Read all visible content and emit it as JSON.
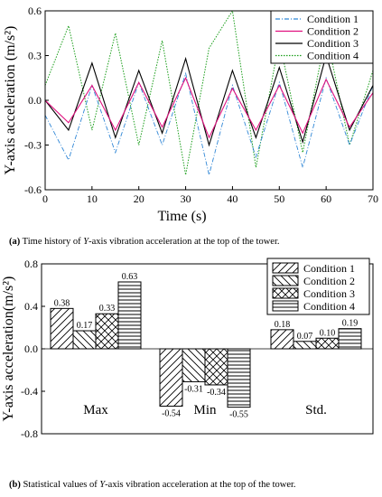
{
  "captions": {
    "a": {
      "tag": "(a)",
      "pre": " Time history of ",
      "var": "Y",
      "post": "-axis vibration acceleration at the top of the tower."
    },
    "b": {
      "tag": "(b)",
      "pre": " Statistical values of ",
      "var": "Y",
      "post": "-axis vibration acceleration at the top of the tower."
    }
  },
  "chart_data": [
    {
      "type": "line",
      "xlabel": "Time (s)",
      "ylabel": "Y-axis acceleration (m/s²)",
      "xlim": [
        0,
        70
      ],
      "ylim": [
        -0.6,
        0.6
      ],
      "x_ticks": [
        "0",
        "10",
        "20",
        "30",
        "40",
        "50",
        "60",
        "70"
      ],
      "y_ticks": [
        "-0.6",
        "-0.3",
        "0.0",
        "0.3",
        "0.6"
      ],
      "legend": {
        "position": "top-right"
      },
      "series": [
        {
          "name": "Condition 1",
          "color": "#2f86d6",
          "style": "dash-dot",
          "x": [
            0,
            5,
            10,
            15,
            20,
            25,
            30,
            35,
            40,
            45,
            50,
            55,
            60,
            65,
            70
          ],
          "y": [
            -0.1,
            -0.4,
            0.1,
            -0.35,
            0.12,
            -0.3,
            0.18,
            -0.5,
            0.1,
            -0.38,
            0.12,
            -0.45,
            0.15,
            -0.3,
            0.1
          ],
          "max": 0.38,
          "min": -0.54,
          "std": 0.18
        },
        {
          "name": "Condition 2",
          "color": "#e0117f",
          "style": "solid",
          "x": [
            0,
            5,
            10,
            15,
            20,
            25,
            30,
            35,
            40,
            45,
            50,
            55,
            60,
            65,
            70
          ],
          "y": [
            0.0,
            -0.15,
            0.1,
            -0.2,
            0.12,
            -0.18,
            0.15,
            -0.25,
            0.08,
            -0.2,
            0.1,
            -0.22,
            0.14,
            -0.18,
            0.05
          ],
          "max": 0.17,
          "min": -0.31,
          "std": 0.07
        },
        {
          "name": "Condition 3",
          "color": "#000000",
          "style": "solid",
          "x": [
            0,
            5,
            10,
            15,
            20,
            25,
            30,
            35,
            40,
            45,
            50,
            55,
            60,
            65,
            70
          ],
          "y": [
            0.0,
            -0.2,
            0.25,
            -0.25,
            0.2,
            -0.22,
            0.28,
            -0.3,
            0.2,
            -0.25,
            0.22,
            -0.28,
            0.3,
            -0.2,
            0.1
          ],
          "max": 0.33,
          "min": -0.34,
          "std": 0.1
        },
        {
          "name": "Condition 4",
          "color": "#1a9e1a",
          "style": "dotted",
          "x": [
            0,
            5,
            10,
            15,
            20,
            25,
            30,
            35,
            40,
            45,
            50,
            55,
            60,
            65,
            70
          ],
          "y": [
            0.1,
            0.5,
            -0.2,
            0.45,
            -0.3,
            0.4,
            -0.5,
            0.35,
            0.6,
            -0.45,
            0.4,
            -0.35,
            0.45,
            -0.3,
            0.2
          ],
          "max": 0.63,
          "min": -0.55,
          "std": 0.19
        }
      ]
    },
    {
      "type": "bar",
      "ylabel": "Y-axis acceleration(m/s²)",
      "ylim": [
        -0.8,
        0.8
      ],
      "y_ticks": [
        "-0.8",
        "-0.4",
        "0.0",
        "0.4",
        "0.8"
      ],
      "categories": [
        "Max",
        "Min",
        "Std."
      ],
      "legend": {
        "position": "top-right"
      },
      "series": [
        {
          "name": "Condition 1",
          "pattern": "diag-up",
          "values": [
            0.38,
            -0.54,
            0.18
          ],
          "labels": [
            "0.38",
            "-0.54",
            "0.18"
          ]
        },
        {
          "name": "Condition 2",
          "pattern": "diag-down",
          "values": [
            0.17,
            -0.31,
            0.07
          ],
          "labels": [
            "0.17",
            "-0.31",
            "0.07"
          ]
        },
        {
          "name": "Condition 3",
          "pattern": "cross",
          "values": [
            0.33,
            -0.34,
            0.1
          ],
          "labels": [
            "0.33",
            "-0.34",
            "0.10"
          ]
        },
        {
          "name": "Condition 4",
          "pattern": "horizontal",
          "values": [
            0.63,
            -0.55,
            0.19
          ],
          "labels": [
            "0.63",
            "-0.55",
            "0.19"
          ]
        }
      ]
    }
  ]
}
